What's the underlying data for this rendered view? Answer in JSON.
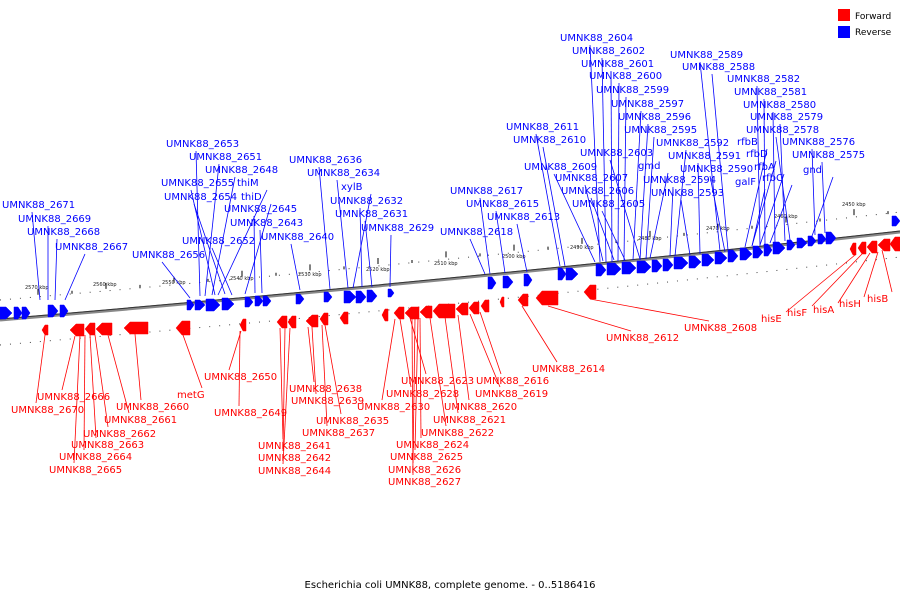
{
  "caption": "Escherichia coli UMNK88, complete genome. - 0..5186416",
  "legend": [
    {
      "label": "Forward",
      "color": "#ff0000"
    },
    {
      "label": "Reverse",
      "color": "#0000ff"
    }
  ],
  "scale_labels": [
    "2570 kbp",
    "2560 kbp",
    "2550 kbp",
    "2540 kbp",
    "2530 kbp",
    "2520 kbp",
    "2510 kbp",
    "2500 kbp",
    "2490 kbp",
    "2480 kbp",
    "2470 kbp",
    "2460 kbp",
    "2450 kbp"
  ],
  "forward_genes": [
    "UMNK88_2666",
    "UMNK88_2670",
    "UMNK88_2662",
    "UMNK88_2661",
    "UMNK88_2660",
    "UMNK88_2663",
    "UMNK88_2664",
    "UMNK88_2665",
    "metG",
    "UMNK88_2650",
    "UMNK88_2649",
    "UMNK88_2641",
    "UMNK88_2642",
    "UMNK88_2644",
    "UMNK88_2638",
    "UMNK88_2639",
    "UMNK88_2635",
    "UMNK88_2637",
    "UMNK88_2630",
    "UMNK88_2628",
    "UMNK88_2623",
    "UMNK88_2624",
    "UMNK88_2625",
    "UMNK88_2626",
    "UMNK88_2627",
    "UMNK88_2616",
    "UMNK88_2619",
    "UMNK88_2620",
    "UMNK88_2621",
    "UMNK88_2622",
    "UMNK88_2614",
    "UMNK88_2612",
    "UMNK88_2608",
    "hisE",
    "hisF",
    "hisA",
    "hisH",
    "hisB"
  ],
  "reverse_genes": [
    "UMNK88_2671",
    "UMNK88_2669",
    "UMNK88_2668",
    "UMNK88_2667",
    "UMNK88_2656",
    "UMNK88_2653",
    "UMNK88_2651",
    "UMNK88_2648",
    "UMNK88_2655",
    "thiM",
    "UMNK88_2654",
    "thiD",
    "UMNK88_2645",
    "UMNK88_2643",
    "UMNK88_2652",
    "UMNK88_2640",
    "UMNK88_2636",
    "UMNK88_2634",
    "xylB",
    "UMNK88_2632",
    "UMNK88_2631",
    "UMNK88_2629",
    "UMNK88_2617",
    "UMNK88_2615",
    "UMNK88_2613",
    "UMNK88_2618",
    "UMNK88_2611",
    "UMNK88_2610",
    "UMNK88_2609",
    "UMNK88_2607",
    "UMNK88_2606",
    "UMNK88_2605",
    "UMNK88_2603",
    "gmd",
    "UMNK88_2604",
    "UMNK88_2602",
    "UMNK88_2601",
    "UMNK88_2600",
    "UMNK88_2599",
    "UMNK88_2597",
    "UMNK88_2596",
    "UMNK88_2595",
    "UMNK88_2594",
    "UMNK88_2593",
    "UMNK88_2592",
    "UMNK88_2591",
    "UMNK88_2590",
    "UMNK88_2589",
    "UMNK88_2588",
    "UMNK88_2582",
    "UMNK88_2581",
    "UMNK88_2580",
    "UMNK88_2579",
    "UMNK88_2578",
    "rfbB",
    "rfbD",
    "rfbA",
    "galF",
    "rfbC",
    "UMNK88_2576",
    "UMNK88_2575",
    "gnd"
  ]
}
